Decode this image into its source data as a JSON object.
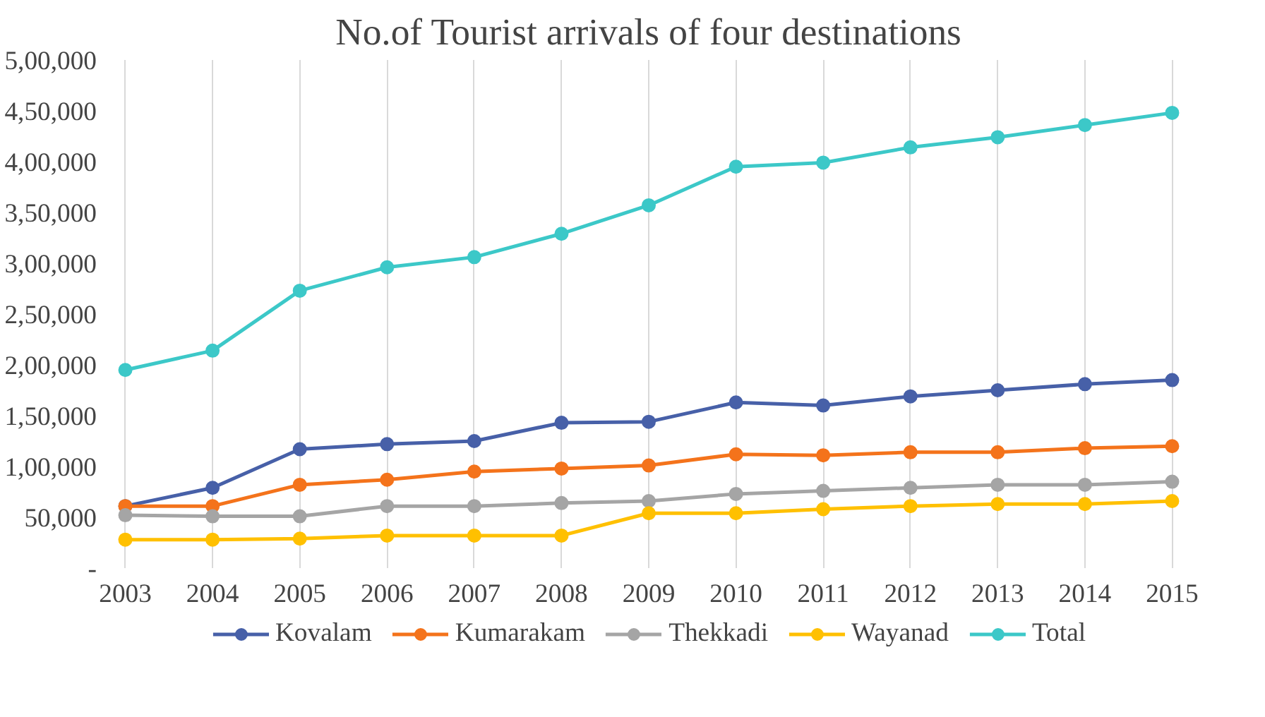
{
  "chart_data": {
    "type": "line",
    "title": "No.of Tourist arrivals of four destinations",
    "categories": [
      "2003",
      "2004",
      "2005",
      "2006",
      "2007",
      "2008",
      "2009",
      "2010",
      "2011",
      "2012",
      "2013",
      "2014",
      "2015"
    ],
    "series": [
      {
        "name": "Kovalam",
        "color": "#4760a8",
        "values": [
          61000,
          79000,
          117000,
          122000,
          125000,
          143000,
          144000,
          163000,
          160000,
          169000,
          175000,
          181000,
          185000
        ]
      },
      {
        "name": "Kumarakam",
        "color": "#f4731b",
        "values": [
          61000,
          61000,
          82000,
          87000,
          95000,
          98000,
          101000,
          112000,
          111000,
          114000,
          114000,
          118000,
          120000
        ]
      },
      {
        "name": "Thekkadi",
        "color": "#a5a5a5",
        "values": [
          52000,
          51000,
          51000,
          61000,
          61000,
          64000,
          66000,
          73000,
          76000,
          79000,
          82000,
          82000,
          85000
        ]
      },
      {
        "name": "Wayanad",
        "color": "#ffc000",
        "values": [
          28000,
          28000,
          29000,
          32000,
          32000,
          32000,
          54000,
          54000,
          58000,
          61000,
          63000,
          63000,
          66000
        ]
      },
      {
        "name": "Total",
        "color": "#3cc8c8",
        "values": [
          195000,
          214000,
          273000,
          296000,
          306000,
          329000,
          357000,
          395000,
          399000,
          414000,
          424000,
          436000,
          448000
        ]
      }
    ],
    "ylim": [
      0,
      500000
    ],
    "yticks": [
      {
        "value": 0,
        "label": "-"
      },
      {
        "value": 50000,
        "label": "50,000"
      },
      {
        "value": 100000,
        "label": "1,00,000"
      },
      {
        "value": 150000,
        "label": "1,50,000"
      },
      {
        "value": 200000,
        "label": "2,00,000"
      },
      {
        "value": 250000,
        "label": "2,50,000"
      },
      {
        "value": 300000,
        "label": "3,00,000"
      },
      {
        "value": 350000,
        "label": "3,50,000"
      },
      {
        "value": 400000,
        "label": "4,00,000"
      },
      {
        "value": 450000,
        "label": "4,50,000"
      },
      {
        "value": 500000,
        "label": "5,00,000"
      }
    ],
    "grid": "x",
    "legend": "bottom",
    "marker": "circle",
    "line_style": "solid"
  }
}
